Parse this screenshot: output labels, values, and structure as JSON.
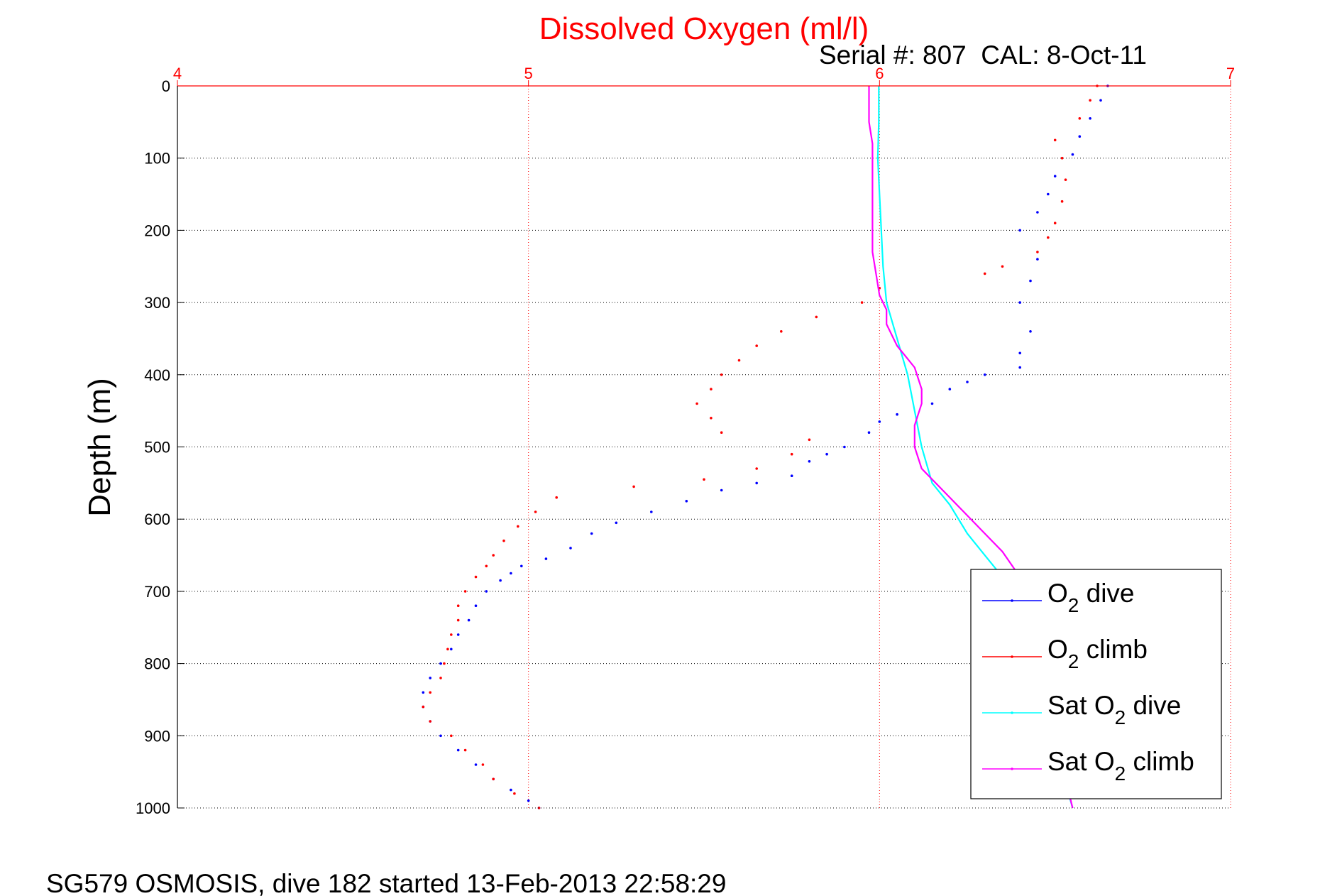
{
  "chart_data": {
    "type": "scatter",
    "title": "Dissolved Oxygen (ml/l)",
    "subtitle": "Serial #: 807  CAL: 8-Oct-11",
    "footer": "SG579 OSMOSIS, dive 182 started 13-Feb-2013 22:58:29",
    "xlabel": "",
    "ylabel": "Depth (m)",
    "xlim": [
      4,
      7
    ],
    "ylim": [
      0,
      1000
    ],
    "y_reversed": true,
    "x_axis_position": "top",
    "x_ticks": [
      "4",
      "5",
      "6",
      "7"
    ],
    "y_ticks": [
      "0",
      "100",
      "200",
      "300",
      "400",
      "500",
      "600",
      "700",
      "800",
      "900",
      "1000"
    ],
    "grid": true,
    "legend_position": "bottom-right",
    "colors": {
      "title": "#ff0000",
      "x_axis": "#ff0000",
      "o2_dive": "#0000ff",
      "o2_climb": "#ff0000",
      "sat_dive": "#00ffff",
      "sat_climb": "#ff00ff"
    },
    "series": [
      {
        "name": "O2 dive",
        "legend_main": "O",
        "legend_sub": "2",
        "legend_rest": " dive",
        "style": "dots",
        "points": [
          [
            6.65,
            0
          ],
          [
            6.63,
            20
          ],
          [
            6.6,
            45
          ],
          [
            6.57,
            70
          ],
          [
            6.55,
            95
          ],
          [
            6.5,
            125
          ],
          [
            6.48,
            150
          ],
          [
            6.45,
            175
          ],
          [
            6.4,
            200
          ],
          [
            6.45,
            240
          ],
          [
            6.43,
            270
          ],
          [
            6.4,
            300
          ],
          [
            6.43,
            340
          ],
          [
            6.4,
            370
          ],
          [
            6.4,
            390
          ],
          [
            6.3,
            400
          ],
          [
            6.25,
            410
          ],
          [
            6.2,
            420
          ],
          [
            6.15,
            440
          ],
          [
            6.05,
            455
          ],
          [
            6.0,
            465
          ],
          [
            5.97,
            480
          ],
          [
            5.9,
            500
          ],
          [
            5.85,
            510
          ],
          [
            5.8,
            520
          ],
          [
            5.75,
            540
          ],
          [
            5.65,
            550
          ],
          [
            5.55,
            560
          ],
          [
            5.45,
            575
          ],
          [
            5.35,
            590
          ],
          [
            5.25,
            605
          ],
          [
            5.18,
            620
          ],
          [
            5.12,
            640
          ],
          [
            5.05,
            655
          ],
          [
            4.98,
            665
          ],
          [
            4.95,
            675
          ],
          [
            4.92,
            685
          ],
          [
            4.88,
            700
          ],
          [
            4.85,
            720
          ],
          [
            4.83,
            740
          ],
          [
            4.8,
            760
          ],
          [
            4.78,
            780
          ],
          [
            4.75,
            800
          ],
          [
            4.72,
            820
          ],
          [
            4.7,
            840
          ],
          [
            4.7,
            860
          ],
          [
            4.72,
            880
          ],
          [
            4.75,
            900
          ],
          [
            4.8,
            920
          ],
          [
            4.85,
            940
          ],
          [
            4.9,
            960
          ],
          [
            4.95,
            975
          ],
          [
            5.0,
            990
          ],
          [
            5.03,
            1000
          ]
        ]
      },
      {
        "name": "O2 climb",
        "legend_main": "O",
        "legend_sub": "2",
        "legend_rest": " climb",
        "style": "dots",
        "points": [
          [
            6.62,
            0
          ],
          [
            6.6,
            20
          ],
          [
            6.57,
            45
          ],
          [
            6.5,
            75
          ],
          [
            6.52,
            100
          ],
          [
            6.53,
            130
          ],
          [
            6.52,
            160
          ],
          [
            6.5,
            190
          ],
          [
            6.48,
            210
          ],
          [
            6.45,
            230
          ],
          [
            6.35,
            250
          ],
          [
            6.3,
            260
          ],
          [
            6.0,
            280
          ],
          [
            5.95,
            300
          ],
          [
            5.82,
            320
          ],
          [
            5.72,
            340
          ],
          [
            5.65,
            360
          ],
          [
            5.6,
            380
          ],
          [
            5.55,
            400
          ],
          [
            5.52,
            420
          ],
          [
            5.48,
            440
          ],
          [
            5.52,
            460
          ],
          [
            5.55,
            480
          ],
          [
            5.8,
            490
          ],
          [
            5.75,
            510
          ],
          [
            5.65,
            530
          ],
          [
            5.5,
            545
          ],
          [
            5.3,
            555
          ],
          [
            5.08,
            570
          ],
          [
            5.02,
            590
          ],
          [
            4.97,
            610
          ],
          [
            4.93,
            630
          ],
          [
            4.9,
            650
          ],
          [
            4.88,
            665
          ],
          [
            4.85,
            680
          ],
          [
            4.82,
            700
          ],
          [
            4.8,
            720
          ],
          [
            4.8,
            740
          ],
          [
            4.78,
            760
          ],
          [
            4.77,
            780
          ],
          [
            4.76,
            800
          ],
          [
            4.75,
            820
          ],
          [
            4.72,
            840
          ],
          [
            4.7,
            860
          ],
          [
            4.72,
            880
          ],
          [
            4.78,
            900
          ],
          [
            4.82,
            920
          ],
          [
            4.87,
            940
          ],
          [
            4.9,
            960
          ],
          [
            4.96,
            980
          ],
          [
            5.03,
            1000
          ]
        ]
      },
      {
        "name": "Sat O2 dive",
        "legend_main": "Sat O",
        "legend_sub": "2",
        "legend_rest": " dive",
        "style": "line",
        "points": [
          [
            5.998,
            0
          ],
          [
            5.998,
            50
          ],
          [
            5.995,
            100
          ],
          [
            6.0,
            150
          ],
          [
            6.005,
            200
          ],
          [
            6.01,
            250
          ],
          [
            6.02,
            300
          ],
          [
            6.05,
            350
          ],
          [
            6.08,
            400
          ],
          [
            6.1,
            450
          ],
          [
            6.12,
            500
          ],
          [
            6.15,
            550
          ],
          [
            6.2,
            580
          ],
          [
            6.25,
            620
          ],
          [
            6.3,
            650
          ],
          [
            6.35,
            680
          ],
          [
            6.42,
            720
          ],
          [
            6.48,
            780
          ],
          [
            6.5,
            850
          ],
          [
            6.52,
            950
          ],
          [
            6.55,
            1000
          ]
        ]
      },
      {
        "name": "Sat O2 climb",
        "legend_main": "Sat O",
        "legend_sub": "2",
        "legend_rest": " climb",
        "style": "line",
        "points": [
          [
            5.97,
            0
          ],
          [
            5.97,
            50
          ],
          [
            5.98,
            80
          ],
          [
            5.98,
            120
          ],
          [
            5.98,
            200
          ],
          [
            5.98,
            230
          ],
          [
            5.99,
            260
          ],
          [
            6.0,
            290
          ],
          [
            6.02,
            310
          ],
          [
            6.02,
            330
          ],
          [
            6.05,
            360
          ],
          [
            6.1,
            390
          ],
          [
            6.12,
            420
          ],
          [
            6.12,
            440
          ],
          [
            6.1,
            470
          ],
          [
            6.1,
            500
          ],
          [
            6.12,
            530
          ],
          [
            6.18,
            560
          ],
          [
            6.24,
            590
          ],
          [
            6.3,
            620
          ],
          [
            6.35,
            645
          ],
          [
            6.4,
            680
          ],
          [
            6.45,
            740
          ],
          [
            6.5,
            820
          ],
          [
            6.52,
            900
          ],
          [
            6.53,
            960
          ],
          [
            6.55,
            1000
          ]
        ]
      }
    ]
  }
}
